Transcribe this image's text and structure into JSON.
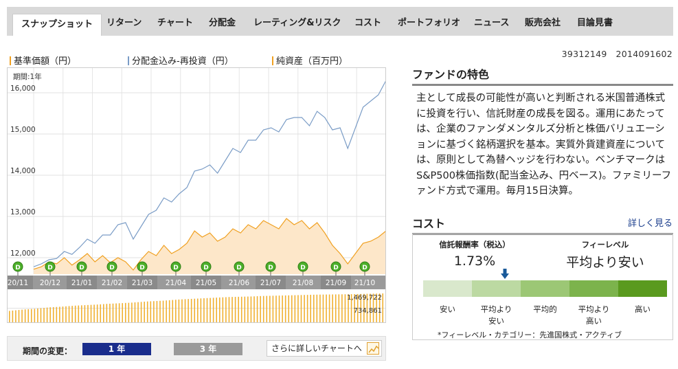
{
  "tabs": [
    {
      "label": "スナップショット",
      "active": true
    },
    {
      "label": "リターン"
    },
    {
      "label": "チャート"
    },
    {
      "label": "分配金"
    },
    {
      "label": "レーティング&リスク"
    },
    {
      "label": "コスト"
    },
    {
      "label": "ポートフォリオ"
    },
    {
      "label": "ニュース"
    },
    {
      "label": "販売会社"
    },
    {
      "label": "目論見書"
    }
  ],
  "legend": {
    "nav": "基準価額（円）",
    "reinvest": "分配金込み-再投資（円）",
    "assets": "純資産（百万円）"
  },
  "codes": "39312149　2014091602",
  "chart_data": {
    "type": "line",
    "period_label": "期間:1年",
    "y_ticks": [
      12000,
      13000,
      14000,
      15000,
      16000
    ],
    "y_tick_labels": [
      "12,000",
      "13,000",
      "14,000",
      "15,000",
      "16,000"
    ],
    "ylim": [
      11600,
      16600
    ],
    "months": [
      "20/11",
      "20/12",
      "21/01",
      "21/02",
      "21/03",
      "21/04",
      "21/05",
      "21/06",
      "21/07",
      "21/08",
      "21/09",
      "21/10"
    ],
    "dividend_marker": "D",
    "series": [
      {
        "name": "基準価額（円）",
        "color": "#f0a020",
        "values": [
          11720,
          11780,
          11900,
          11850,
          12000,
          11820,
          11950,
          12100,
          11900,
          12050,
          11880,
          12000,
          11900,
          11700,
          11950,
          12150,
          12050,
          12300,
          12100,
          12200,
          12350,
          12650,
          12500,
          12600,
          12400,
          12500,
          12700,
          12600,
          12800,
          12700,
          12900,
          12800,
          12700,
          12950,
          12800,
          12900,
          12700,
          12850,
          12600,
          12300,
          12100,
          11850,
          12100,
          12350,
          12400,
          12500,
          12650
        ]
      },
      {
        "name": "分配金込み-再投資（円）",
        "color": "#7a9cc6",
        "values": [
          11780,
          11850,
          11950,
          11980,
          12150,
          12080,
          12250,
          12450,
          12350,
          12550,
          12550,
          12800,
          12850,
          12450,
          12750,
          13050,
          13150,
          13450,
          13350,
          13550,
          13700,
          14100,
          14150,
          14250,
          14050,
          14350,
          14650,
          14550,
          14850,
          14850,
          15100,
          15150,
          15050,
          15350,
          15400,
          15400,
          15200,
          15550,
          15400,
          15100,
          15150,
          14650,
          15150,
          15650,
          15800,
          15950,
          16300
        ]
      }
    ],
    "assets_bar": {
      "name": "純資産（百万円）",
      "color": "#f0b030",
      "labels": [
        "1,469,722",
        "734,861"
      ],
      "values": [
        600000,
        640000,
        680000,
        700000,
        740000,
        780000,
        800000,
        830000,
        860000,
        880000,
        900000,
        920000,
        950000,
        970000,
        990000,
        1010000,
        1040000,
        1070000,
        1090000,
        1110000,
        1140000,
        1170000,
        1190000,
        1210000,
        1230000,
        1250000,
        1270000,
        1290000,
        1300000,
        1310000,
        1320000,
        1340000,
        1350000,
        1360000,
        1370000,
        1380000,
        1390000,
        1400000,
        1410000,
        1415000,
        1420000,
        1425000,
        1430000,
        1440000,
        1450000,
        1460000,
        1469722
      ],
      "max": 1469722
    }
  },
  "period": {
    "label": "期間の変更：",
    "one_year": "1 年",
    "three_year": "3 年",
    "more_chart": "さらに詳しいチャートへ"
  },
  "features": {
    "title": "ファンドの特色",
    "text": "主として成長の可能性が高いと判断される米国普通株式に投資を行い、信託財産の成長を図る。運用にあたっては、企業のファンダメンタルズ分析と株価バリュエーションに基づく銘柄選択を基本。実質外貨建資産については、原則として為替ヘッジを行わない。ベンチマークはS&P500株価指数(配当金込み、円ベース)。ファミリーファンド方式で運用。毎月15日決算。"
  },
  "cost": {
    "title": "コスト",
    "detail_link": "詳しく見る",
    "fee_label": "信託報酬率（税込）",
    "fee_value": "1.73%",
    "level_label": "フィーレベル",
    "level_value": "平均より安い",
    "scale": [
      {
        "label": "安い",
        "color": "#d9e8cc"
      },
      {
        "label": "平均より\n安い",
        "color": "#bcd9a2"
      },
      {
        "label": "平均的",
        "color": "#9cc775"
      },
      {
        "label": "平均より\n高い",
        "color": "#7cb34c"
      },
      {
        "label": "高い",
        "color": "#5a9a1e"
      }
    ],
    "marker_color": "#1a5a9a",
    "footnote": "*フィーレベル・カテゴリー：先進国株式・アクティブ"
  }
}
